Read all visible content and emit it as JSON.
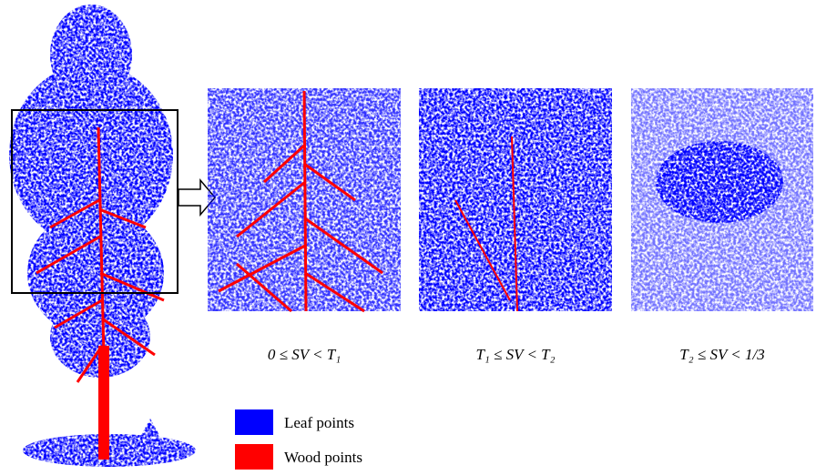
{
  "captions": [
    "0 ≤ SV < T₁",
    "T₁ ≤ SV < T₂",
    "T₂ ≤ SV < 1/3"
  ],
  "legend": [
    {
      "label": "Leaf points",
      "color": "#0000ff"
    },
    {
      "label": "Wood points",
      "color": "#ff0000"
    }
  ]
}
